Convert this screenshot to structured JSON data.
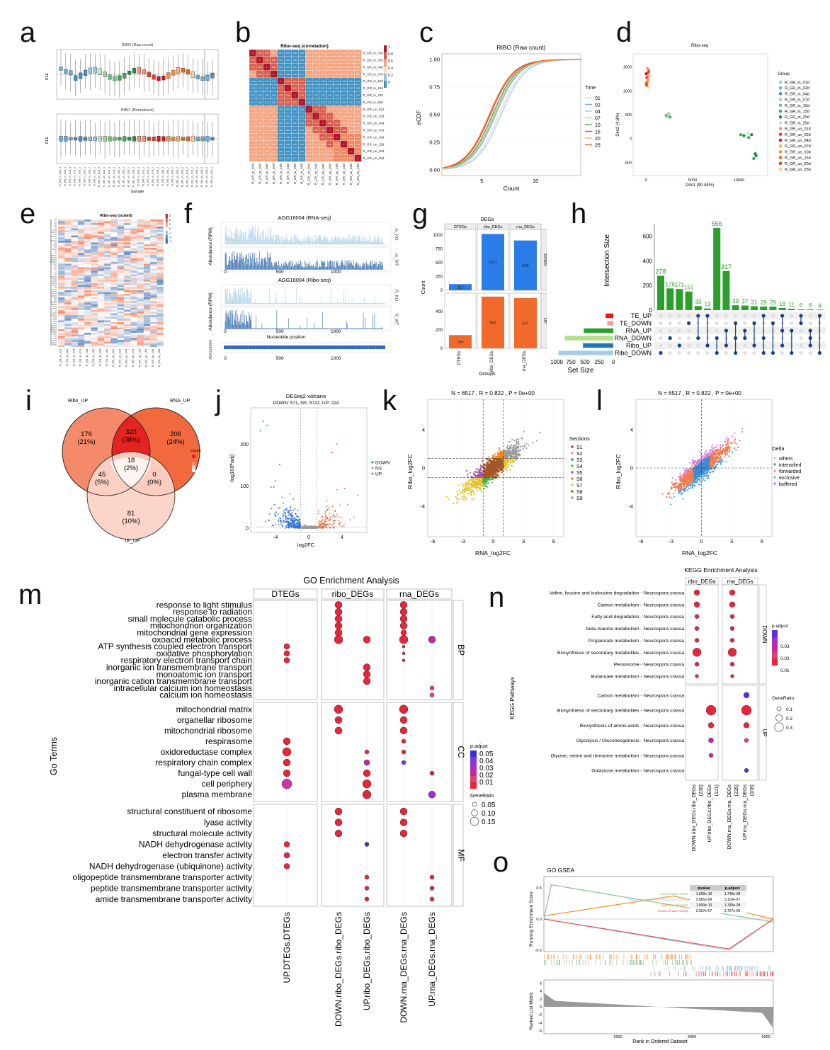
{
  "panel_letters": [
    "a",
    "b",
    "c",
    "d",
    "e",
    "f",
    "g",
    "h",
    "i",
    "j",
    "k",
    "l",
    "m",
    "n",
    "o"
  ],
  "panel_a": {
    "top_title": "RIBO (Raw count)",
    "bottom_title": "RIBO (Normalized)",
    "ylabel": "RLE",
    "xlabel": "Sample"
  },
  "panel_b": {
    "title": "Ribo-seq (correlation)",
    "samples": [
      "R_GR_in_01d",
      "R_GR_in_02d",
      "R_GR_in_04d",
      "R_GR_in_07d",
      "R_GR_in_10d",
      "R_GR_in_15d",
      "R_GR_in_20d",
      "R_GR_in_25d",
      "R_GR_un_01d",
      "R_GR_un_02d",
      "R_GR_un_04d",
      "R_GR_un_07d",
      "R_GR_un_10d",
      "R_GR_un_15d",
      "R_GR_un_20d",
      "R_GR_un_25d"
    ],
    "scale": [
      "1",
      "0.8",
      "0.6",
      "0.4",
      "0.2",
      "0"
    ]
  },
  "panel_c": {
    "chart_data": {
      "type": "line",
      "title": "RIBO (Raw count)",
      "xlabel": "Count",
      "ylabel": "eCDF",
      "x_ticks": [
        "5",
        "10"
      ],
      "y_ticks": [
        "0.00",
        "0.25",
        "0.50",
        "0.75",
        "1.00"
      ],
      "legend_title": "Time",
      "series": [
        {
          "name": "01",
          "color": "#c6dbef",
          "mid": 6.6
        },
        {
          "name": "02",
          "color": "#6baed6",
          "mid": 6.3
        },
        {
          "name": "04",
          "color": "#9ecae1",
          "mid": 6.8
        },
        {
          "name": "07",
          "color": "#a1d99b",
          "mid": 6.1
        },
        {
          "name": "10",
          "color": "#41ab5d",
          "mid": 6.0
        },
        {
          "name": "15",
          "color": "#ef3b2c",
          "mid": 5.8
        },
        {
          "name": "20",
          "color": "#fdae6b",
          "mid": 6.2
        },
        {
          "name": "25",
          "color": "#f16913",
          "mid": 5.7
        }
      ]
    }
  },
  "panel_d": {
    "title": "Ribo-seq",
    "xlabel": "Dim1 (90.44%)",
    "ylabel": "Dim2 (4.8%)",
    "x_ticks": [
      "0",
      "5000",
      "10000"
    ],
    "y_ticks": [
      "1500",
      "1000",
      "500",
      "0",
      "-500"
    ],
    "legend_title": "Group",
    "groups": [
      {
        "name": "R_GR_in_01d",
        "color": "#9ecae1"
      },
      {
        "name": "R_GR_in_02d",
        "color": "#6baed6"
      },
      {
        "name": "R_GR_in_04d",
        "color": "#4292c6"
      },
      {
        "name": "R_GR_in_07d",
        "color": "#a1d99b"
      },
      {
        "name": "R_GR_in_10d",
        "color": "#74c476"
      },
      {
        "name": "R_GR_in_15d",
        "color": "#41ab5d"
      },
      {
        "name": "R_GR_in_20d",
        "color": "#238b45"
      },
      {
        "name": "R_GR_in_25d",
        "color": "#c7e9c0"
      },
      {
        "name": "R_GR_un_01d",
        "color": "#fc9272"
      },
      {
        "name": "R_GR_un_02d",
        "color": "#ef3b2c"
      },
      {
        "name": "R_GR_un_04d",
        "color": "#cb181d"
      },
      {
        "name": "R_GR_un_07d",
        "color": "#fdae6b"
      },
      {
        "name": "R_GR_un_10d",
        "color": "#fd8d3c"
      },
      {
        "name": "R_GR_un_15d",
        "color": "#f16913"
      },
      {
        "name": "R_GR_un_20d",
        "color": "#d94801"
      },
      {
        "name": "R_GR_un_25d",
        "color": "#fdd0a2"
      }
    ]
  },
  "panel_e": {
    "title": "Ribo-seq (scaled)",
    "scale": [
      "3",
      "2",
      "1",
      "0",
      "-1",
      "-2",
      "-3"
    ]
  },
  "panel_f": {
    "title_rna": "AGG16004 (RNA-seq)",
    "title_ribo": "AGG16004 (Ribo-seq)",
    "ylabel": "Abundance (RPM)",
    "xlabel": "Nucleotide position",
    "ticks": [
      "0",
      "500",
      "1000"
    ],
    "tracks": [
      "m_KO",
      "m_WT",
      "R_KO",
      "R_WT"
    ],
    "gene": "AGG16004"
  },
  "panel_g": {
    "chart_data": {
      "type": "bar",
      "title": "DEGs",
      "categories": [
        "DTEGs",
        "ribo_DEGs",
        "rna_DEGs"
      ],
      "series": [
        {
          "name": "DOWN",
          "values": [
            112,
            1017,
            900
          ],
          "color": "#2b7de9"
        },
        {
          "name": "UP",
          "values": [
            144,
            562,
            547
          ],
          "color": "#f06a2b"
        }
      ],
      "xlabel": "Groups",
      "ylabel": "Count",
      "down_ticks": [
        "0",
        "250",
        "500",
        "750",
        "1000"
      ],
      "up_ticks": [
        "0",
        "200",
        "400"
      ]
    }
  },
  "panel_h": {
    "chart_data": {
      "type": "bar",
      "ylabel": "Intersection Size",
      "xlabel": "Set Size",
      "values": [
        278,
        176,
        171,
        151,
        33,
        13,
        666,
        317,
        39,
        37,
        31,
        29,
        29,
        18,
        11,
        6,
        6,
        4
      ],
      "y_ticks": [
        "0",
        "200",
        "400",
        "600"
      ],
      "sets": [
        {
          "name": "TE_UP",
          "color": "#e41a1c",
          "size": 144
        },
        {
          "name": "TE_DOWN",
          "color": "#fb9a99",
          "size": 112
        },
        {
          "name": "RNA_UP",
          "color": "#2ca02c",
          "size": 547
        },
        {
          "name": "RNA_DOWN",
          "color": "#b2df8a",
          "size": 900
        },
        {
          "name": "Ribo_UP",
          "color": "#1f78b4",
          "size": 562
        },
        {
          "name": "Ribo_DOWN",
          "color": "#a6cee3",
          "size": 1017
        }
      ],
      "set_ticks": [
        "1000",
        "750",
        "500",
        "250",
        "0"
      ]
    }
  },
  "panel_i": {
    "sets": [
      "Ribo_UP",
      "RNA_UP",
      "TE_UP"
    ],
    "regions": [
      {
        "count": "176",
        "pct": "(21%)"
      },
      {
        "count": "323",
        "pct": "(38%)"
      },
      {
        "count": "206",
        "pct": "(24%)"
      },
      {
        "count": "18",
        "pct": "(2%)"
      },
      {
        "count": "45",
        "pct": "(5%)"
      },
      {
        "count": "0",
        "pct": "(0%)"
      },
      {
        "count": "81",
        "pct": "(10%)"
      }
    ],
    "legend_title": "count"
  },
  "panel_j": {
    "title": "DESeq2-volcano",
    "subtitle": "DOWN: 571, NS: 5722, UP: 224",
    "xlabel": "log2FC",
    "ylabel": "-log10(Padj)",
    "x_ticks": [
      "-4",
      "0",
      "4"
    ],
    "y_ticks": [
      "0",
      "100",
      "200"
    ],
    "legend": [
      "DOWN",
      "NS",
      "UP"
    ]
  },
  "panel_k": {
    "header": "N =  6517 ,  R =  0.822 ,  P =  0e+00",
    "xlabel": "RNA_log2FC",
    "ylabel": "Ribo_log2FC",
    "ticks": [
      "-6",
      "-3",
      "0",
      "3",
      "6"
    ],
    "y_ticks": [
      "4",
      "0",
      "-4"
    ],
    "legend_title": "Sections",
    "legend": [
      "S1",
      "S2",
      "S3",
      "S4",
      "S5",
      "S6",
      "S7",
      "S8",
      "S9"
    ]
  },
  "panel_l": {
    "header": "N =  6517 ,  R =  0.822 ,  P =  0e+00",
    "xlabel": "RNA_log2FC",
    "ylabel": "Ribo_log2FC",
    "ticks": [
      "-6",
      "-3",
      "0",
      "3",
      "6"
    ],
    "y_ticks": [
      "4",
      "0",
      "-4"
    ],
    "legend_title": "Delta",
    "legend": [
      "others",
      "intensified",
      "forwarded",
      "exclusive",
      "buffered"
    ]
  },
  "panel_m": {
    "title": "GO Enrichment Analysis",
    "ylabel": "Go Terms",
    "columns": [
      "DTEGs",
      "ribo_DEGs",
      "rna_DEGs"
    ],
    "x_labels": [
      "UP.DTEGs.DTEGs",
      "DOWN.ribo_DEGs.ribo_DEGs",
      "UP.ribo_DEGs.ribo_DEGs",
      "DOWN.rna_DEGs.rna_DEGs",
      "UP.rna_DEGs.rna_DEGs"
    ],
    "facets": [
      "BP",
      "CC",
      "MF"
    ],
    "bp_terms": [
      "response to light stimulus",
      "response to radiation",
      "small molecule catabolic process",
      "mitochondrion organization",
      "mitochondrial gene expression",
      "oxoacid metabolic process",
      "ATP synthesis coupled electron transport",
      "oxidative phosphorylation",
      "respiratory electron transport chain",
      "inorganic ion transmembrane transport",
      "monoatomic ion transport",
      "inorganic cation transmembrane transport",
      "intracellular calcium ion homeostasis",
      "calcium ion homeostasis"
    ],
    "cc_terms": [
      "mitochondrial matrix",
      "organellar ribosome",
      "mitochondrial ribosome",
      "respirasome",
      "oxidoreductase complex",
      "respiratory chain complex",
      "fungal-type cell wall",
      "cell periphery",
      "plasma membrane"
    ],
    "mf_terms": [
      "structural constituent of ribosome",
      "lyase activity",
      "structural molecule activity",
      "NADH dehydrogenase activity",
      "electron transfer activity",
      "NADH dehydrogenase (ubiquinone) activity",
      "oligopeptide transmembrane transporter activity",
      "peptide transmembrane transporter activity",
      "amide transmembrane transporter activity"
    ],
    "padj_title": "p.adjust",
    "padj_ticks": [
      "0.05",
      "0.04",
      "0.03",
      "0.02",
      "0.01"
    ],
    "gr_title": "GeneRatio",
    "gr_ticks": [
      "0.05",
      "0.10",
      "0.15"
    ]
  },
  "panel_n": {
    "title": "KEGG Enrichment Analysis",
    "ylabel": "KEGG Pathways",
    "columns": [
      "ribo_DEGs",
      "rna_DEGs"
    ],
    "facets": [
      "DOWN",
      "UP"
    ],
    "down_terms": [
      "Valine, leucine and isoleucine degradation - Neurospora crassa",
      "Carbon metabolism - Neurospora crassa",
      "Fatty acid degradation - Neurospora crassa",
      "beta-Alanine metabolism - Neurospora crassa",
      "Propanoate metabolism - Neurospora crassa",
      "Biosynthesis of secondary metabolites - Neurospora crassa",
      "Peroxisome - Neurospora crassa",
      "Butanoate metabolism - Neurospora crassa"
    ],
    "up_terms": [
      "Carbon metabolism - Neurospora crassa",
      "Biosynthesis of secondary metabolites - Neurospora crassa",
      "Biosynthesis of amino acids - Neurospora crassa",
      "Glycolysis / Gluconeogenesis - Neurospora crassa",
      "Glycine, serine and threonine metabolism - Neurospora crassa",
      "Galactose metabolism - Neurospora crassa"
    ],
    "x_labels": [
      "DOWN.ribo_DEGs.ribo_DEGs",
      "(230)",
      "UP.ribo_DEGs.ribo_DEGs",
      "(121)",
      "DOWN.rna_DEGs.rna_DEGs",
      "(235)",
      "UP.rna_DEGs.rna_DEGs",
      "(108)"
    ],
    "padj_title": "p.adjust",
    "padj_ticks": [
      "0.03",
      "0.02",
      "0.01"
    ],
    "gr_title": "GeneRatio",
    "gr_ticks": [
      "0.1",
      "0.2",
      "0.3"
    ]
  },
  "panel_o": {
    "title": "GO GSEA",
    "ylabel_top": "Running Enrichment Score",
    "ylabel_bottom": "Ranked List Metric",
    "xlabel": "Rank in Ordered Dataset",
    "x_ticks": [
      "2000",
      "4000",
      "6000"
    ],
    "y_ticks_top": [
      "0.5",
      "0.0",
      "-0.5"
    ],
    "y_ticks_bottom": [
      "6",
      "4",
      "2",
      "0",
      "-2",
      "-4",
      "-6"
    ],
    "table_header": [
      "pvalue",
      "p.adjust"
    ],
    "table_rows": [
      {
        "term": "mitochondrial matrix",
        "pvalue": "1.000e-10",
        "padj": "1.740e-08",
        "color": "#8fbf8f"
      },
      {
        "term": "peptide transmembrane transporter activity",
        "pvalue": "2.681e-09",
        "padj": "3.110e-07",
        "color": "#a6c8e0"
      },
      {
        "term": "organellar ribosome",
        "pvalue": "1.000e-10",
        "padj": "1.740e-08",
        "color": "#f28e2b"
      },
      {
        "term": "protein kinase activity",
        "pvalue": "2.597e-07",
        "padj": "2.707e-05",
        "color": "#e15759"
      }
    ]
  }
}
